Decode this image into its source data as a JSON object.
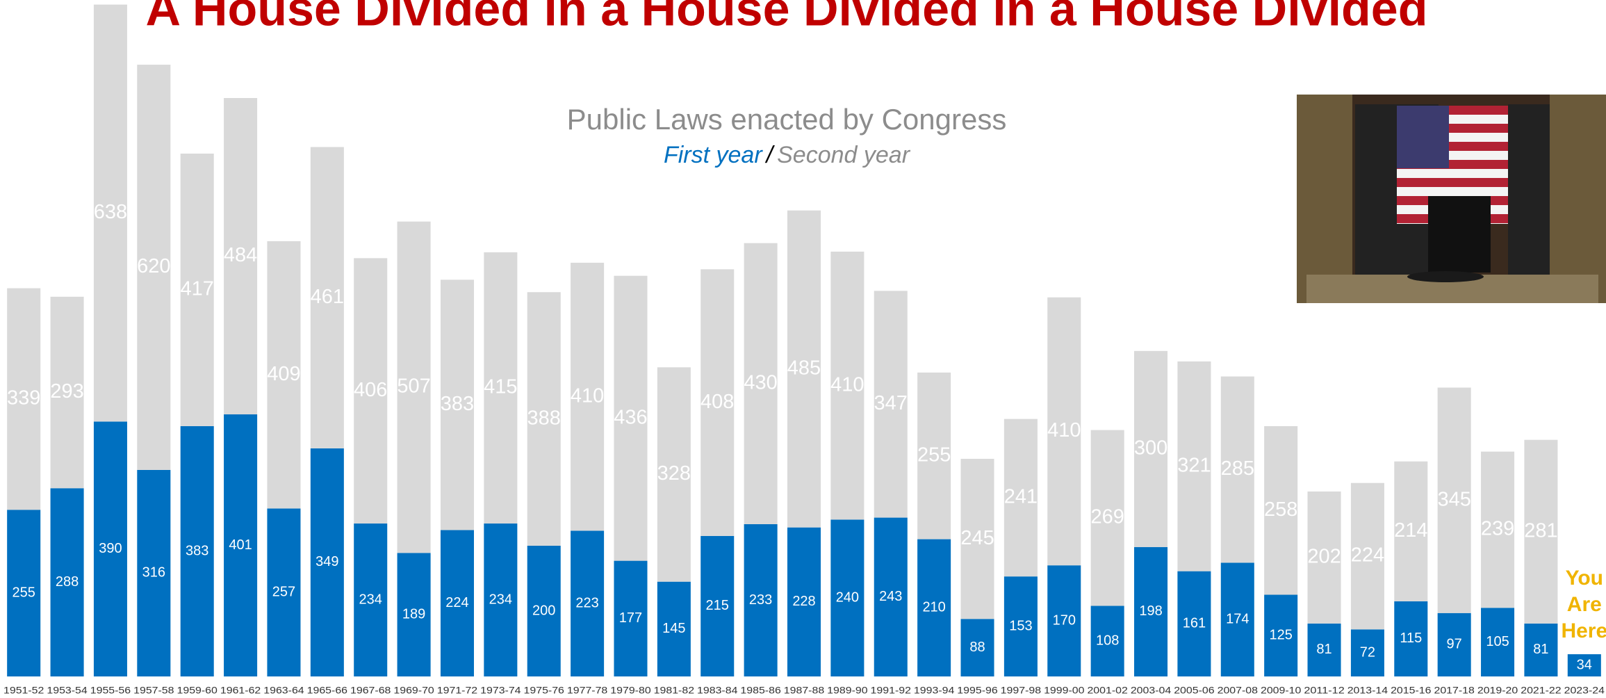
{
  "chart_data": {
    "type": "stacked_bar",
    "title": "A House Divided in a House Divided in a House Divided",
    "subtitle": "Public Laws enacted by Congress",
    "legend_separator": "/",
    "annotation_lines": [
      "You",
      "Are",
      "Here"
    ],
    "categories": [
      "1951-52",
      "1953-54",
      "1955-56",
      "1957-58",
      "1959-60",
      "1961-62",
      "1963-64",
      "1965-66",
      "1967-68",
      "1969-70",
      "1971-72",
      "1973-74",
      "1975-76",
      "1977-78",
      "1979-80",
      "1981-82",
      "1983-84",
      "1985-86",
      "1987-88",
      "1989-90",
      "1991-92",
      "1993-94",
      "1995-96",
      "1997-98",
      "1999-00",
      "2001-02",
      "2003-04",
      "2005-06",
      "2007-08",
      "2009-10",
      "2011-12",
      "2013-14",
      "2015-16",
      "2017-18",
      "2019-20",
      "2021-22",
      "2023-24"
    ],
    "series": [
      {
        "name": "First year",
        "color": "#0070c0",
        "values": [
          255,
          288,
          390,
          316,
          383,
          401,
          257,
          349,
          234,
          189,
          224,
          234,
          200,
          223,
          177,
          145,
          215,
          233,
          228,
          240,
          243,
          210,
          88,
          153,
          170,
          108,
          198,
          161,
          174,
          125,
          81,
          72,
          115,
          97,
          105,
          81,
          34
        ]
      },
      {
        "name": "Second year",
        "color": "#d9d9d9",
        "values": [
          339,
          293,
          638,
          620,
          417,
          484,
          409,
          461,
          406,
          507,
          383,
          415,
          388,
          410,
          436,
          328,
          408,
          430,
          485,
          410,
          347,
          255,
          245,
          241,
          410,
          269,
          300,
          321,
          285,
          258,
          202,
          224,
          214,
          345,
          239,
          281,
          null
        ]
      }
    ],
    "ylim": [
      0,
      1035
    ]
  }
}
